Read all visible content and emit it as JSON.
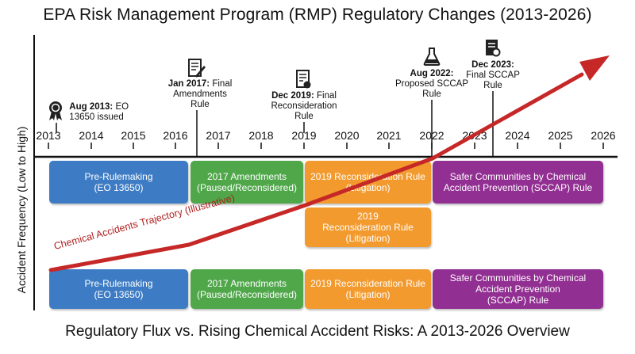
{
  "title": "EPA Risk Management Program (RMP) Regulatory Changes (2013-2026)",
  "subtitle": "Regulatory Flux vs. Rising Chemical Accident Risks: A 2013-2026 Overview",
  "y_axis_label": "Accident Frequency (Low to High)",
  "years": [
    "2013",
    "2014",
    "2015",
    "2016",
    "2017",
    "2018",
    "2019",
    "2020",
    "2021",
    "2022",
    "2023",
    "2024",
    "2025",
    "2026"
  ],
  "milestones": [
    {
      "date": "Aug 2013:",
      "text1": "EO",
      "text2": "13650 issued",
      "icon": "award-ribbon-icon"
    },
    {
      "date": "Jan 2017:",
      "text1": "Final",
      "text2": "Amendments",
      "text3": "Rule",
      "icon": "signed-document-icon"
    },
    {
      "date": "Dec 2019:",
      "text1": "Final",
      "text2": "Reconsideration",
      "text3": "Rule",
      "icon": "document-seal-icon"
    },
    {
      "date": "Aug 2022:",
      "text1": "Proposed SCCAP",
      "text2": "Rule",
      "icon": "flask-icon"
    },
    {
      "date": "Dec 2023:",
      "text1": "Final SCCAP",
      "text2": "Rule",
      "icon": "certificate-icon"
    }
  ],
  "phases_top": [
    {
      "label": "Pre-Rulemaking\n(EO 13650)"
    },
    {
      "label": "2017 Amendments\n(Paused/Reconsidered)"
    },
    {
      "label": "2019 Reconsideration Rule\n(Litigation)"
    },
    {
      "label": "Safer Communities by Chemical\nAccident Prevention (SCCAP) Rule"
    }
  ],
  "phase_middle": {
    "label": "2019\nReconsideration Rule\n(Litigation)"
  },
  "phases_bottom": [
    {
      "label": "Pre-Rulemaking\n(EO 13650)"
    },
    {
      "label": "2017 Amendments\n(Paused/Reconsidered)"
    },
    {
      "label": "2019 Reconsideration Rule\n(Litigation)"
    },
    {
      "label": "Safer Communities by Chemical\nAccident Prevention\n(SCCAP) Rule"
    }
  ],
  "trajectory_label": "Chemical Accidents Trajectory (Illustrative)",
  "colors": {
    "blue": "#3d7cc4",
    "green": "#4fa74a",
    "orange": "#f29a2e",
    "purple": "#922f92",
    "trajectory": "#c62828"
  }
}
